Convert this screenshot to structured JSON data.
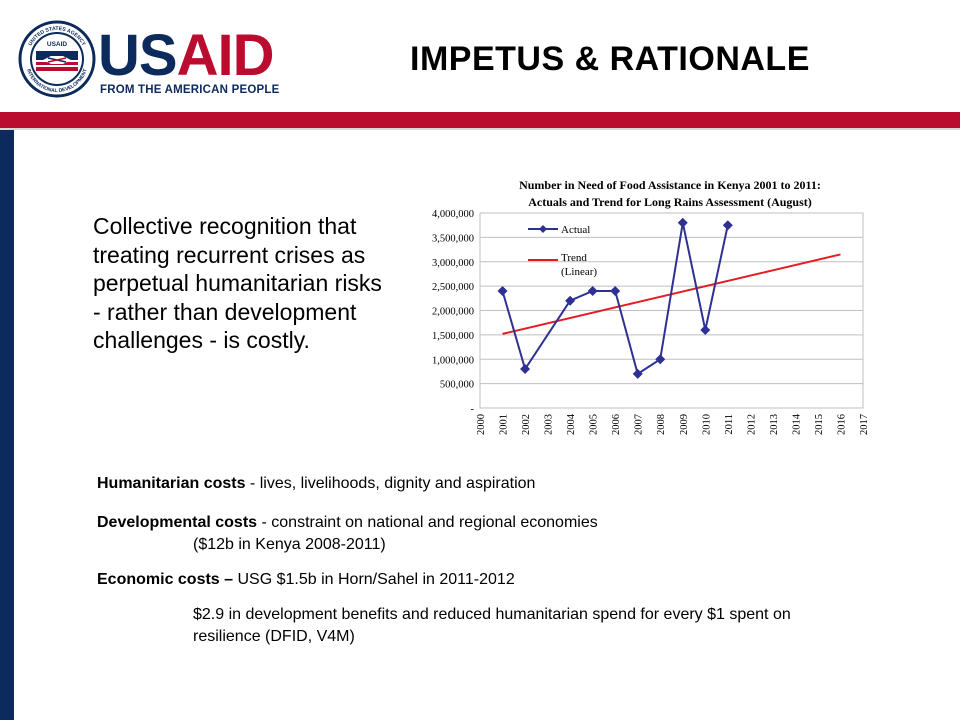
{
  "logo": {
    "brand_us": "US",
    "brand_aid": "AID",
    "tagline": "FROM THE AMERICAN PEOPLE",
    "seal_text_top": "UNITED STATES AGENCY",
    "seal_text_bottom": "INTERNATIONAL DEVELOPMENT",
    "seal_center": "USAID"
  },
  "title": "IMPETUS & RATIONALE",
  "lead": "Collective recognition that treating recurrent crises as perpetual humanitarian risks - rather than development challenges - is costly.",
  "bullets": {
    "humanitarian_label": "Humanitarian costs",
    "humanitarian_text": " - lives, livelihoods, dignity and aspiration",
    "developmental_label": "Developmental costs",
    "developmental_text": " - constraint on national and regional economies",
    "developmental_sub": "($12b in Kenya 2008-2011)",
    "economic_label": "Economic costs –",
    "economic_text": " USG $1.5b in Horn/Sahel in 2011-2012",
    "economic_sub": "$2.9 in development benefits and reduced humanitarian spend for every $1 spent on resilience (DFID, V4M)"
  },
  "colors": {
    "navy": "#0d2a5c",
    "red": "#ba0c2f",
    "actual": "#2e3192",
    "trend": "#e31b23"
  },
  "chart_data": {
    "type": "line",
    "title_line1": "Number in Need of Food Assistance in Kenya 2001 to 2011:",
    "title_line2": "Actuals and Trend for Long Rains Assessment (August)",
    "x_ticks": [
      "2000",
      "2001",
      "2002",
      "2003",
      "2004",
      "2005",
      "2006",
      "2007",
      "2008",
      "2009",
      "2010",
      "2011",
      "2012",
      "2013",
      "2014",
      "2015",
      "2016",
      "2017"
    ],
    "y_ticks": [
      {
        "value": 0,
        "label": "-"
      },
      {
        "value": 500000,
        "label": "500,000"
      },
      {
        "value": 1000000,
        "label": "1,000,000"
      },
      {
        "value": 1500000,
        "label": "1,500,000"
      },
      {
        "value": 2000000,
        "label": "2,000,000"
      },
      {
        "value": 2500000,
        "label": "2,500,000"
      },
      {
        "value": 3000000,
        "label": "3,000,000"
      },
      {
        "value": 3500000,
        "label": "3,500,000"
      },
      {
        "value": 4000000,
        "label": "4,000,000"
      }
    ],
    "xlim": [
      2000,
      2017
    ],
    "ylim": [
      0,
      4000000
    ],
    "grid": true,
    "legend_position": "top-left",
    "series": [
      {
        "name": "Actual",
        "style": "line-with-diamond-markers",
        "points": [
          [
            2001,
            2400000
          ],
          [
            2002,
            800000
          ],
          [
            2004,
            2200000
          ],
          [
            2005,
            2400000
          ],
          [
            2006,
            2400000
          ],
          [
            2007,
            700000
          ],
          [
            2008,
            1000000
          ],
          [
            2009,
            3800000
          ],
          [
            2010,
            1600000
          ],
          [
            2011,
            3750000
          ]
        ]
      },
      {
        "name": "Trend",
        "name_line2": "(Linear)",
        "style": "line",
        "points": [
          [
            2001,
            1520000
          ],
          [
            2016,
            3150000
          ]
        ]
      }
    ]
  }
}
